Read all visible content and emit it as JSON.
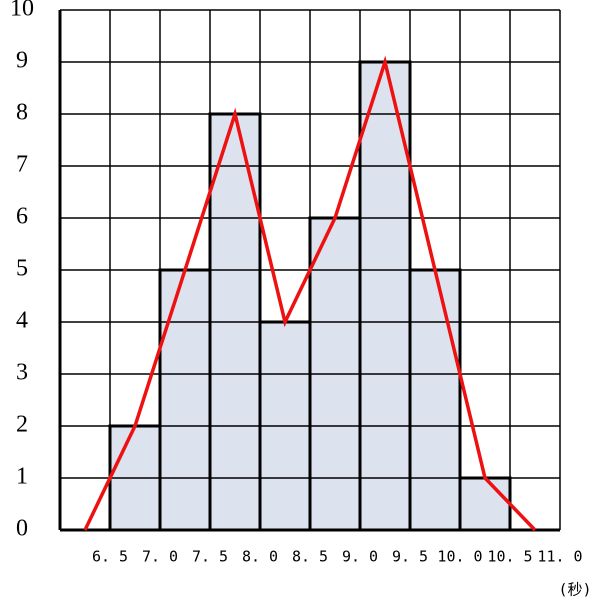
{
  "chart_data": {
    "type": "histogram",
    "bins": [
      6.5,
      7.0,
      7.5,
      8.0,
      8.5,
      9.0,
      9.5,
      10.0,
      10.5
    ],
    "counts": [
      2,
      5,
      8,
      4,
      6,
      9,
      5,
      1
    ],
    "color": "#dce3ef",
    "polygon": {
      "color": "#ee1111",
      "x": [
        6.25,
        6.75,
        7.25,
        7.75,
        8.25,
        8.75,
        9.25,
        9.75,
        10.25,
        10.75
      ],
      "values": [
        0,
        2,
        5,
        8,
        4,
        6,
        9,
        5,
        1,
        0
      ]
    },
    "xlim": [
      6.0,
      11.0
    ],
    "ylim": [
      0,
      10
    ],
    "yticks": [
      0,
      1,
      2,
      3,
      4,
      5,
      6,
      7,
      8,
      9,
      10
    ],
    "xticks": [
      {
        "value": 6.5,
        "label": "6. 5"
      },
      {
        "value": 7.0,
        "label": "7. 0"
      },
      {
        "value": 7.5,
        "label": "7. 5"
      },
      {
        "value": 8.0,
        "label": "8. 0"
      },
      {
        "value": 8.5,
        "label": "8. 5"
      },
      {
        "value": 9.0,
        "label": "9. 0"
      },
      {
        "value": 9.5,
        "label": "9. 5"
      },
      {
        "value": 10.0,
        "label": "10. 0"
      },
      {
        "value": 10.5,
        "label": "10. 5"
      },
      {
        "value": 11.0,
        "label": "11. 0"
      }
    ],
    "x_unit": "(秒)",
    "grid": true
  }
}
